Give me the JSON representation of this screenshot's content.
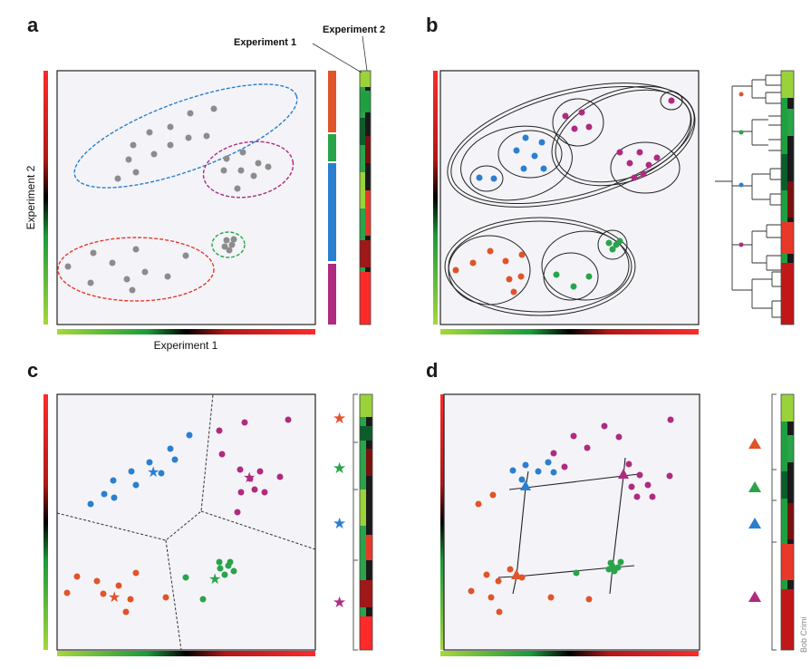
{
  "figure": {
    "panels": [
      {
        "letter": "a"
      },
      {
        "letter": "b"
      },
      {
        "letter": "c"
      },
      {
        "letter": "d"
      }
    ],
    "labels": {
      "x_axis": "Experiment 1",
      "y_axis": "Experiment 2",
      "heatmap_col1": "Experiment 1",
      "heatmap_col2": "Experiment 2",
      "credit": "Bob Crimi"
    },
    "colors": {
      "plot_bg": "#f4f4f8",
      "red": "#e8382a",
      "green": "#2aa44a",
      "blue": "#2a7fd0",
      "magenta": "#b02a80",
      "orange": "#e0542a",
      "gray": "#8c8c8c",
      "lime": "#9ad23a"
    }
  }
}
